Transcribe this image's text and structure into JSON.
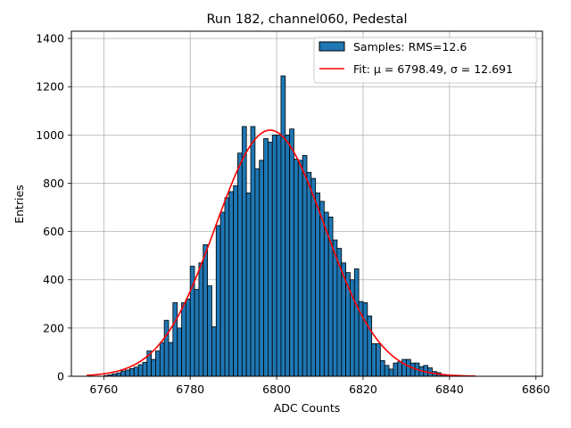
{
  "chart_data": {
    "type": "bar",
    "title": "Run 182, channel060, Pedestal",
    "xlabel": "ADC Counts",
    "ylabel": "Entries",
    "xlim": [
      6752.5,
      6861.5
    ],
    "ylim": [
      0,
      1430
    ],
    "xticks": [
      6760,
      6780,
      6800,
      6820,
      6840,
      6860
    ],
    "yticks": [
      0,
      200,
      400,
      600,
      800,
      1000,
      1200,
      1400
    ],
    "grid": true,
    "legend_position": "upper right",
    "bin_width": 1,
    "bin_starts": [
      6760,
      6761,
      6762,
      6763,
      6764,
      6765,
      6766,
      6767,
      6768,
      6769,
      6770,
      6771,
      6772,
      6773,
      6774,
      6775,
      6776,
      6777,
      6778,
      6779,
      6780,
      6781,
      6782,
      6783,
      6784,
      6785,
      6786,
      6787,
      6788,
      6789,
      6790,
      6791,
      6792,
      6793,
      6794,
      6795,
      6796,
      6797,
      6798,
      6799,
      6800,
      6801,
      6802,
      6803,
      6804,
      6805,
      6806,
      6807,
      6808,
      6809,
      6810,
      6811,
      6812,
      6813,
      6814,
      6815,
      6816,
      6817,
      6818,
      6819,
      6820,
      6821,
      6822,
      6823,
      6824,
      6825,
      6826,
      6827,
      6828,
      6829,
      6830,
      6831,
      6832,
      6833,
      6834,
      6835,
      6836,
      6837,
      6838,
      6839,
      6840,
      6841,
      6842,
      6843,
      6844
    ],
    "values": [
      3,
      6,
      10,
      14,
      22,
      26,
      32,
      38,
      48,
      58,
      105,
      70,
      105,
      140,
      232,
      140,
      305,
      200,
      305,
      320,
      456,
      360,
      470,
      545,
      375,
      205,
      625,
      680,
      740,
      765,
      790,
      925,
      1035,
      760,
      1035,
      860,
      895,
      985,
      970,
      1000,
      1000,
      1245,
      1000,
      1025,
      900,
      895,
      915,
      845,
      820,
      760,
      725,
      680,
      660,
      565,
      530,
      470,
      430,
      400,
      445,
      310,
      305,
      250,
      135,
      135,
      65,
      45,
      30,
      55,
      60,
      70,
      70,
      55,
      55,
      40,
      45,
      35,
      20,
      15,
      8,
      5,
      3,
      2,
      1,
      1,
      1
    ],
    "series": [
      {
        "name": "Samples: RMS=12.6",
        "kind": "histogram",
        "color": "#1f77b4",
        "edgecolor": "#000000"
      },
      {
        "name": "Fit: μ = 6798.49, σ = 12.691",
        "kind": "gaussian",
        "mu": 6798.49,
        "sigma": 12.691,
        "amplitude": 1020,
        "x_range": [
          6756,
          6846
        ],
        "color": "#ff0000"
      }
    ]
  }
}
